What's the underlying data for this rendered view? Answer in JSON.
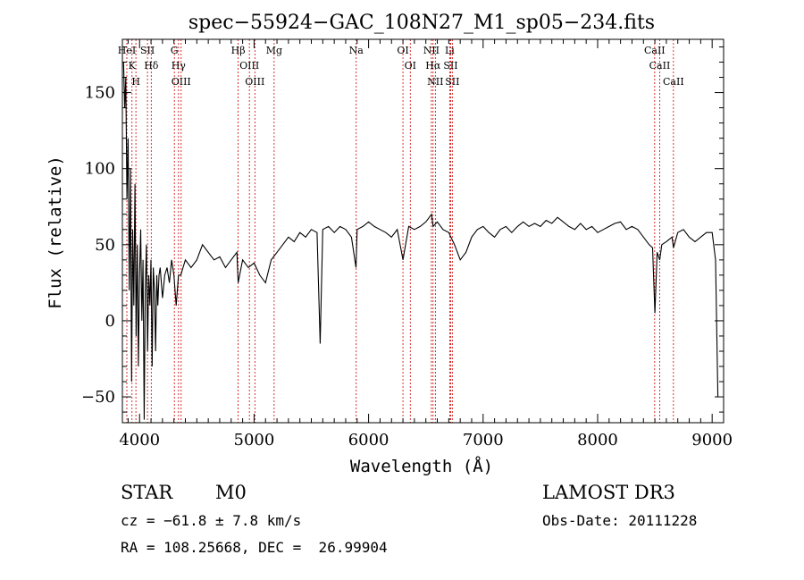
{
  "chart_data": {
    "type": "line",
    "title": "spec−55924−GAC_108N27_M1_sp05−234.fits",
    "xlabel": "Wavelength (Å)",
    "ylabel": "Flux (relative)",
    "xlim": [
      3850,
      9100
    ],
    "ylim": [
      -67,
      185
    ],
    "xticks": [
      4000,
      5000,
      6000,
      7000,
      8000,
      9000
    ],
    "xtick_labels": [
      "4000",
      "5000",
      "6000",
      "7000",
      "8000",
      "9000"
    ],
    "yticks": [
      -50,
      0,
      50,
      100,
      150
    ],
    "ytick_labels": [
      "−50",
      "0",
      "50",
      "100",
      "150"
    ],
    "grid": false,
    "legend": "none",
    "line_color": "#000000",
    "marker_color": "#cc0000",
    "series": [
      {
        "x": [
          3860,
          3870,
          3880,
          3890,
          3900,
          3910,
          3920,
          3930,
          3940,
          3950,
          3960,
          3970,
          3980,
          3990,
          4000,
          4010,
          4020,
          4030,
          4040,
          4050,
          4060,
          4070,
          4080,
          4090,
          4100,
          4110,
          4120,
          4130,
          4140,
          4150,
          4160,
          4170,
          4180,
          4190,
          4200,
          4220,
          4240,
          4260,
          4280,
          4300,
          4320,
          4340,
          4360,
          4380,
          4400,
          4450,
          4500,
          4550,
          4600,
          4650,
          4700,
          4750,
          4800,
          4850,
          4861,
          4900,
          4950,
          5000,
          5050,
          5100,
          5150,
          5200,
          5250,
          5300,
          5350,
          5400,
          5450,
          5500,
          5550,
          5577,
          5600,
          5650,
          5700,
          5750,
          5800,
          5850,
          5890,
          5900,
          5950,
          6000,
          6050,
          6100,
          6150,
          6200,
          6250,
          6300,
          6350,
          6400,
          6450,
          6500,
          6550,
          6563,
          6600,
          6650,
          6700,
          6750,
          6800,
          6850,
          6900,
          6950,
          7000,
          7050,
          7100,
          7150,
          7200,
          7250,
          7300,
          7350,
          7400,
          7450,
          7500,
          7550,
          7600,
          7650,
          7700,
          7750,
          7800,
          7850,
          7900,
          7950,
          8000,
          8050,
          8100,
          8150,
          8200,
          8250,
          8300,
          8350,
          8400,
          8450,
          8480,
          8500,
          8520,
          8542,
          8560,
          8600,
          8650,
          8662,
          8700,
          8750,
          8800,
          8850,
          8900,
          8950,
          9000,
          9030,
          9050
        ],
        "values": [
          170,
          140,
          160,
          80,
          120,
          20,
          100,
          -40,
          60,
          10,
          90,
          -10,
          50,
          -30,
          30,
          60,
          0,
          40,
          -65,
          20,
          50,
          -20,
          30,
          10,
          40,
          -30,
          35,
          20,
          -20,
          30,
          10,
          30,
          35,
          25,
          15,
          30,
          35,
          25,
          40,
          30,
          10,
          30,
          30,
          35,
          40,
          35,
          40,
          50,
          45,
          40,
          42,
          35,
          40,
          45,
          25,
          40,
          35,
          38,
          30,
          25,
          40,
          45,
          50,
          55,
          52,
          58,
          55,
          60,
          58,
          -15,
          60,
          62,
          58,
          62,
          60,
          55,
          35,
          60,
          62,
          65,
          62,
          60,
          58,
          55,
          60,
          40,
          62,
          60,
          62,
          65,
          70,
          62,
          65,
          60,
          58,
          50,
          40,
          45,
          55,
          60,
          62,
          58,
          55,
          60,
          62,
          58,
          62,
          65,
          62,
          64,
          62,
          66,
          64,
          68,
          65,
          62,
          60,
          64,
          60,
          62,
          58,
          60,
          62,
          64,
          65,
          60,
          62,
          60,
          55,
          50,
          48,
          5,
          45,
          40,
          50,
          52,
          55,
          48,
          58,
          60,
          55,
          52,
          55,
          58,
          58,
          40,
          -50
        ]
      }
    ],
    "line_markers": [
      {
        "wavelength": 3934,
        "label": "K"
      },
      {
        "wavelength": 3968,
        "label": "H"
      },
      {
        "wavelength": 3889,
        "label": "HeI"
      },
      {
        "wavelength": 4069,
        "label": "SII"
      },
      {
        "wavelength": 4102,
        "label": "Hδ"
      },
      {
        "wavelength": 4304,
        "label": "G"
      },
      {
        "wavelength": 4340,
        "label": "Hγ"
      },
      {
        "wavelength": 4363,
        "label": "OIII"
      },
      {
        "wavelength": 4861,
        "label": "Hβ"
      },
      {
        "wavelength": 4959,
        "label": "OIII"
      },
      {
        "wavelength": 5007,
        "label": "OIII"
      },
      {
        "wavelength": 5175,
        "label": "Mg"
      },
      {
        "wavelength": 5892,
        "label": "Na"
      },
      {
        "wavelength": 6300,
        "label": "OI"
      },
      {
        "wavelength": 6364,
        "label": "OI"
      },
      {
        "wavelength": 6548,
        "label": "NII"
      },
      {
        "wavelength": 6563,
        "label": "Hα"
      },
      {
        "wavelength": 6583,
        "label": "NII"
      },
      {
        "wavelength": 6708,
        "label": "Li"
      },
      {
        "wavelength": 6717,
        "label": "SII"
      },
      {
        "wavelength": 6731,
        "label": "SII"
      },
      {
        "wavelength": 8498,
        "label": "CaII"
      },
      {
        "wavelength": 8542,
        "label": "CaII"
      },
      {
        "wavelength": 8662,
        "label": "CaII"
      }
    ]
  },
  "info": {
    "class": "STAR",
    "subclass": "M0",
    "survey": "LAMOST DR3",
    "cz": "cz = −61.8 ± 7.8 km/s",
    "obs_date": "Obs-Date: 20111228",
    "coords": "RA = 108.25668, DEC =  26.99904"
  }
}
